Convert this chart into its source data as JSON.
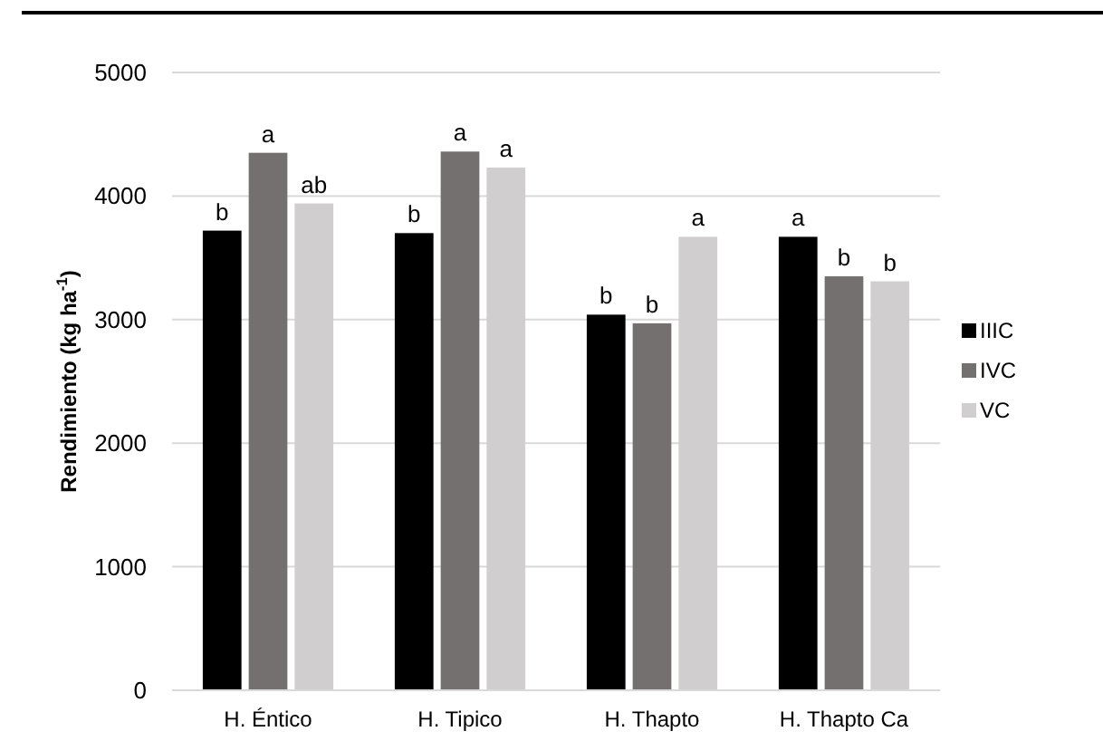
{
  "chart_data": {
    "type": "bar",
    "ylabel": "Rendimiento (kg ha$^{-1}$)",
    "categories": [
      "H. Éntico",
      "H. Tipico",
      "H. Thapto",
      "H. Thapto Ca"
    ],
    "series": [
      {
        "name": "IIIC",
        "color": "#000000",
        "values": [
          3720,
          3700,
          3040,
          3670
        ],
        "value_labels": [
          "b",
          "b",
          "b",
          "a"
        ]
      },
      {
        "name": "IVC",
        "color": "#757070",
        "values": [
          4350,
          4360,
          2970,
          3350
        ],
        "value_labels": [
          "a",
          "a",
          "b",
          "b"
        ]
      },
      {
        "name": "VC",
        "color": "#d0cece",
        "values": [
          3940,
          4230,
          3670,
          3310
        ],
        "value_labels": [
          "ab",
          "a",
          "a",
          "b"
        ]
      }
    ],
    "ylim": [
      0,
      5000
    ],
    "yticks": [
      0,
      1000,
      2000,
      3000,
      4000,
      5000
    ],
    "grid": "y",
    "legend": "right"
  }
}
